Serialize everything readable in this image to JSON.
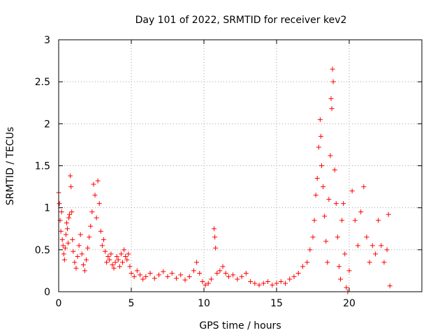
{
  "chart_data": {
    "type": "scatter",
    "title": "Day 101 of 2022, SRMTID for receiver kev2",
    "xlabel": "GPS time / hours",
    "ylabel": "SRMTID / TECUs",
    "xlim": [
      0,
      25
    ],
    "ylim": [
      0,
      3
    ],
    "xticks": [
      0,
      5,
      10,
      15,
      20
    ],
    "xtick_labels": [
      "0",
      "5",
      "10",
      "15",
      "20"
    ],
    "yticks": [
      0,
      0.5,
      1,
      1.5,
      2,
      2.5,
      3
    ],
    "ytick_labels": [
      "0",
      "0.5",
      "1",
      "1.5",
      "2",
      "2.5",
      "3"
    ],
    "grid": true,
    "marker": "plus",
    "series": [
      {
        "name": "SRMTID",
        "color": "#ff0000",
        "points": [
          [
            0.0,
            1.18
          ],
          [
            0.05,
            1.05
          ],
          [
            0.1,
            0.85
          ],
          [
            0.15,
            0.72
          ],
          [
            0.2,
            0.95
          ],
          [
            0.25,
            0.62
          ],
          [
            0.3,
            0.55
          ],
          [
            0.35,
            0.45
          ],
          [
            0.4,
            0.38
          ],
          [
            0.45,
            0.52
          ],
          [
            0.5,
            0.68
          ],
          [
            0.55,
            0.82
          ],
          [
            0.6,
            0.75
          ],
          [
            0.65,
            0.58
          ],
          [
            0.7,
            0.88
          ],
          [
            0.75,
            0.92
          ],
          [
            0.8,
            1.38
          ],
          [
            0.85,
            1.25
          ],
          [
            0.9,
            0.95
          ],
          [
            0.95,
            0.62
          ],
          [
            1.0,
            0.48
          ],
          [
            1.1,
            0.35
          ],
          [
            1.2,
            0.28
          ],
          [
            1.3,
            0.42
          ],
          [
            1.4,
            0.55
          ],
          [
            1.5,
            0.68
          ],
          [
            1.6,
            0.45
          ],
          [
            1.7,
            0.32
          ],
          [
            1.8,
            0.25
          ],
          [
            1.9,
            0.38
          ],
          [
            2.0,
            0.52
          ],
          [
            2.1,
            0.65
          ],
          [
            2.2,
            0.78
          ],
          [
            2.3,
            0.95
          ],
          [
            2.4,
            1.28
          ],
          [
            2.5,
            1.15
          ],
          [
            2.6,
            0.88
          ],
          [
            2.7,
            1.32
          ],
          [
            2.8,
            1.05
          ],
          [
            2.9,
            0.72
          ],
          [
            3.0,
            0.55
          ],
          [
            3.1,
            0.62
          ],
          [
            3.2,
            0.48
          ],
          [
            3.3,
            0.35
          ],
          [
            3.4,
            0.42
          ],
          [
            3.5,
            0.38
          ],
          [
            3.6,
            0.45
          ],
          [
            3.7,
            0.32
          ],
          [
            3.8,
            0.28
          ],
          [
            3.9,
            0.35
          ],
          [
            4.0,
            0.42
          ],
          [
            4.1,
            0.38
          ],
          [
            4.2,
            0.3
          ],
          [
            4.3,
            0.45
          ],
          [
            4.4,
            0.35
          ],
          [
            4.5,
            0.5
          ],
          [
            4.6,
            0.42
          ],
          [
            4.7,
            0.38
          ],
          [
            4.8,
            0.45
          ],
          [
            4.9,
            0.3
          ],
          [
            5.0,
            0.22
          ],
          [
            5.2,
            0.18
          ],
          [
            5.4,
            0.25
          ],
          [
            5.6,
            0.2
          ],
          [
            5.8,
            0.15
          ],
          [
            6.0,
            0.18
          ],
          [
            6.3,
            0.22
          ],
          [
            6.6,
            0.16
          ],
          [
            6.9,
            0.2
          ],
          [
            7.2,
            0.24
          ],
          [
            7.5,
            0.18
          ],
          [
            7.8,
            0.22
          ],
          [
            8.1,
            0.16
          ],
          [
            8.4,
            0.2
          ],
          [
            8.7,
            0.14
          ],
          [
            9.0,
            0.18
          ],
          [
            9.3,
            0.25
          ],
          [
            9.5,
            0.35
          ],
          [
            9.7,
            0.22
          ],
          [
            9.9,
            0.12
          ],
          [
            10.1,
            0.08
          ],
          [
            10.3,
            0.1
          ],
          [
            10.5,
            0.15
          ],
          [
            10.7,
            0.75
          ],
          [
            10.75,
            0.65
          ],
          [
            10.8,
            0.52
          ],
          [
            10.9,
            0.22
          ],
          [
            11.1,
            0.25
          ],
          [
            11.3,
            0.3
          ],
          [
            11.5,
            0.22
          ],
          [
            11.7,
            0.18
          ],
          [
            12.0,
            0.2
          ],
          [
            12.3,
            0.15
          ],
          [
            12.6,
            0.18
          ],
          [
            12.9,
            0.22
          ],
          [
            13.2,
            0.12
          ],
          [
            13.5,
            0.1
          ],
          [
            13.8,
            0.08
          ],
          [
            14.1,
            0.1
          ],
          [
            14.4,
            0.12
          ],
          [
            14.7,
            0.08
          ],
          [
            15.0,
            0.1
          ],
          [
            15.3,
            0.12
          ],
          [
            15.6,
            0.1
          ],
          [
            15.9,
            0.15
          ],
          [
            16.2,
            0.18
          ],
          [
            16.5,
            0.22
          ],
          [
            16.8,
            0.3
          ],
          [
            17.1,
            0.35
          ],
          [
            17.3,
            0.5
          ],
          [
            17.5,
            0.65
          ],
          [
            17.6,
            0.85
          ],
          [
            17.7,
            1.15
          ],
          [
            17.8,
            1.35
          ],
          [
            17.9,
            1.72
          ],
          [
            18.0,
            2.05
          ],
          [
            18.05,
            1.85
          ],
          [
            18.1,
            1.5
          ],
          [
            18.2,
            1.25
          ],
          [
            18.3,
            0.9
          ],
          [
            18.4,
            0.6
          ],
          [
            18.5,
            0.35
          ],
          [
            18.6,
            1.1
          ],
          [
            18.7,
            1.62
          ],
          [
            18.75,
            2.3
          ],
          [
            18.8,
            2.18
          ],
          [
            18.85,
            2.65
          ],
          [
            18.9,
            2.5
          ],
          [
            19.0,
            1.45
          ],
          [
            19.1,
            1.05
          ],
          [
            19.2,
            0.65
          ],
          [
            19.3,
            0.3
          ],
          [
            19.4,
            0.15
          ],
          [
            19.5,
            0.85
          ],
          [
            19.6,
            1.05
          ],
          [
            19.7,
            0.45
          ],
          [
            19.8,
            0.05
          ],
          [
            19.9,
            0.0
          ],
          [
            20.0,
            0.25
          ],
          [
            20.2,
            1.2
          ],
          [
            20.4,
            0.85
          ],
          [
            20.6,
            0.55
          ],
          [
            20.8,
            0.95
          ],
          [
            21.0,
            1.25
          ],
          [
            21.2,
            0.65
          ],
          [
            21.4,
            0.35
          ],
          [
            21.6,
            0.55
          ],
          [
            21.8,
            0.45
          ],
          [
            22.0,
            0.85
          ],
          [
            22.2,
            0.55
          ],
          [
            22.4,
            0.35
          ],
          [
            22.6,
            0.5
          ],
          [
            22.7,
            0.92
          ],
          [
            22.8,
            0.07
          ]
        ]
      }
    ]
  }
}
